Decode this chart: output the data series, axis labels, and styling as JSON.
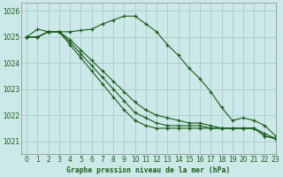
{
  "title": "Graphe pression niveau de la mer (hPa)",
  "bg_color": "#cce8e8",
  "grid_color": "#aacccc",
  "line_color": "#1a5c1a",
  "marker": "+",
  "xlim": [
    -0.5,
    23
  ],
  "ylim": [
    1020.5,
    1026.3
  ],
  "yticks": [
    1021,
    1022,
    1023,
    1024,
    1025,
    1026
  ],
  "xticks": [
    0,
    1,
    2,
    3,
    4,
    5,
    6,
    7,
    8,
    9,
    10,
    11,
    12,
    13,
    14,
    15,
    16,
    17,
    18,
    19,
    20,
    21,
    22,
    23
  ],
  "series": [
    [
      1025.0,
      1025.3,
      1025.2,
      1025.2,
      1025.2,
      1025.25,
      1025.3,
      1025.5,
      1025.65,
      1025.8,
      1025.8,
      1025.5,
      1025.2,
      1024.7,
      1024.3,
      1023.8,
      1023.4,
      1022.9,
      1022.3,
      1021.8,
      1021.9,
      1021.8,
      1021.6,
      1021.2
    ],
    [
      1025.0,
      1025.0,
      1025.2,
      1025.2,
      1024.9,
      1024.5,
      1024.1,
      1023.7,
      1023.3,
      1022.9,
      1022.5,
      1022.2,
      1022.0,
      1021.9,
      1021.8,
      1021.7,
      1021.7,
      1021.6,
      1021.5,
      1021.5,
      1021.5,
      1021.5,
      1021.2,
      1021.1
    ],
    [
      1025.0,
      1025.0,
      1025.2,
      1025.2,
      1024.8,
      1024.35,
      1023.9,
      1023.45,
      1023.0,
      1022.55,
      1022.1,
      1021.9,
      1021.7,
      1021.6,
      1021.6,
      1021.6,
      1021.6,
      1021.5,
      1021.5,
      1021.5,
      1021.5,
      1021.5,
      1021.3,
      1021.1
    ],
    [
      1025.0,
      1025.0,
      1025.2,
      1025.2,
      1024.7,
      1024.2,
      1023.7,
      1023.2,
      1022.7,
      1022.2,
      1021.8,
      1021.6,
      1021.5,
      1021.5,
      1021.5,
      1021.5,
      1021.5,
      1021.5,
      1021.5,
      1021.5,
      1021.5,
      1021.5,
      1021.2,
      1021.1
    ]
  ]
}
